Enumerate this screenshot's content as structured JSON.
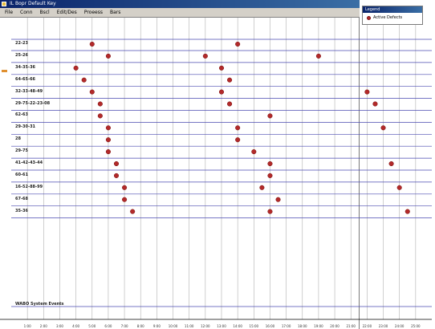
{
  "window": {
    "title": "IL Bopr Default Key",
    "menu": [
      "File",
      "Conn",
      "Bscl",
      "Edit/Des",
      "Proeess",
      "Bars"
    ]
  },
  "legend": {
    "title": "Legend",
    "entry_label": "Active Defects",
    "marker_color": "#b22a2a"
  },
  "timeline": {
    "rows": [
      {
        "label": "22-23",
        "events": [
          5,
          14
        ]
      },
      {
        "label": "25-26",
        "events": [
          6,
          12,
          19
        ]
      },
      {
        "label": "34-35-36",
        "events": [
          4,
          13
        ]
      },
      {
        "label": "64-65-66",
        "events": [
          4.5,
          13.5
        ]
      },
      {
        "label": "32-33-48-49",
        "events": [
          5,
          13,
          22
        ]
      },
      {
        "label": "29-75-22-23-08",
        "events": [
          5.5,
          13.5,
          22.5
        ]
      },
      {
        "label": "62-63",
        "events": [
          5.5,
          16
        ]
      },
      {
        "label": "29-30-31",
        "events": [
          6,
          14,
          23
        ]
      },
      {
        "label": "28",
        "events": [
          6,
          14
        ]
      },
      {
        "label": "29-75",
        "events": [
          6,
          15
        ]
      },
      {
        "label": "41-42-43-44",
        "events": [
          6.5,
          16,
          23.5
        ]
      },
      {
        "label": "60-61",
        "events": [
          6.5,
          16
        ]
      },
      {
        "label": "16-52-88-99",
        "events": [
          7,
          15.5,
          24
        ]
      },
      {
        "label": "67-68",
        "events": [
          7,
          16.5
        ]
      },
      {
        "label": "35-36",
        "events": [
          7.5,
          16,
          24.5
        ]
      }
    ],
    "system_row_label": "WABO System Events",
    "tick_labels": [
      "1:00",
      "2:00",
      "3:00",
      "4:00",
      "5:00",
      "6:00",
      "7:00",
      "8:00",
      "9:00",
      "10:00",
      "11:00",
      "12:00",
      "13:00",
      "14:00",
      "15:00",
      "16:00",
      "17:00",
      "18:00",
      "19:00",
      "20:00",
      "21:00",
      "22:00",
      "23:00",
      "24:00",
      "25:00"
    ],
    "x_range": [
      0,
      26
    ]
  }
}
